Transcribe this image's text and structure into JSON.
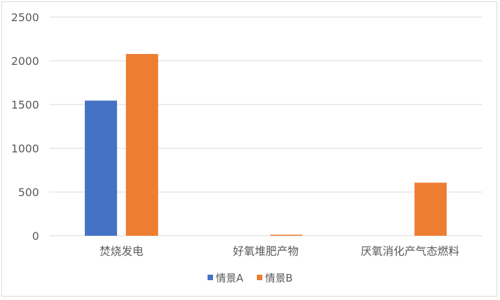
{
  "chart_data": {
    "type": "bar",
    "categories": [
      "焚烧发电",
      "好氧堆肥产物",
      "厌氧消化产气态燃料"
    ],
    "series": [
      {
        "name": "情景A",
        "values": [
          1545,
          0,
          0
        ],
        "color": "#4472C4"
      },
      {
        "name": "情景B",
        "values": [
          2078,
          12,
          607
        ],
        "color": "#ED7D31"
      }
    ],
    "ylim": [
      0,
      2500
    ],
    "yticks": [
      "0",
      "500",
      "1000",
      "1500",
      "2000",
      "2500"
    ],
    "grid": true,
    "legend": "bottom",
    "title": "",
    "xlabel": "",
    "ylabel": ""
  }
}
